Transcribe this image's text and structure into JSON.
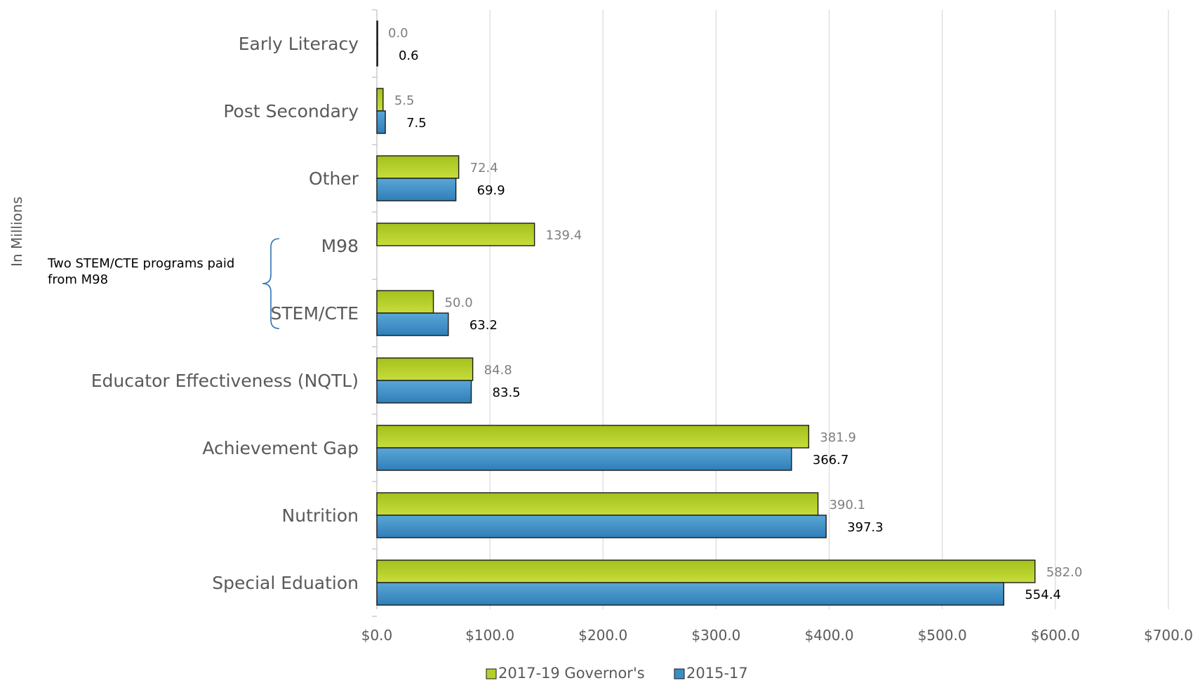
{
  "chart_data": {
    "type": "bar",
    "orientation": "horizontal",
    "categories": [
      "Early Literacy",
      "Post Secondary",
      "Other",
      "M98",
      "STEM/CTE",
      "Educator Effectiveness (NQTL)",
      "Achievement Gap",
      "Nutrition",
      "Special Eduation"
    ],
    "series": [
      {
        "name": "2017-19 Governor's",
        "color": "#b5cf2a",
        "values": [
          0.0,
          5.5,
          72.4,
          139.4,
          50.0,
          84.8,
          381.9,
          390.1,
          582.0
        ],
        "labels": [
          "0.0",
          "5.5",
          "72.4",
          "139.4",
          "50.0",
          "84.8",
          "381.9",
          "390.1",
          "582.0"
        ]
      },
      {
        "name": "2015-17",
        "color": "#3a8ec4",
        "values": [
          0.6,
          7.5,
          69.9,
          null,
          63.2,
          83.5,
          366.7,
          397.3,
          554.4
        ],
        "labels": [
          "0.6",
          "7.5",
          "69.9",
          "",
          "63.2",
          "83.5",
          "366.7",
          "397.3",
          "554.4"
        ]
      }
    ],
    "xlim": [
      0,
      700
    ],
    "xticks": [
      0,
      100,
      200,
      300,
      400,
      500,
      600,
      700
    ],
    "xtick_labels": [
      "$0.0",
      "$100.0",
      "$200.0",
      "$300.0",
      "$400.0",
      "$500.0",
      "$600.0",
      "$700.0"
    ],
    "ylabel": "In Millions",
    "grid": true,
    "legend_position": "bottom",
    "annotation": {
      "text_lines": [
        "Two STEM/CTE programs paid",
        "from M98"
      ],
      "brackets_categories": [
        "M98",
        "STEM/CTE"
      ]
    }
  }
}
